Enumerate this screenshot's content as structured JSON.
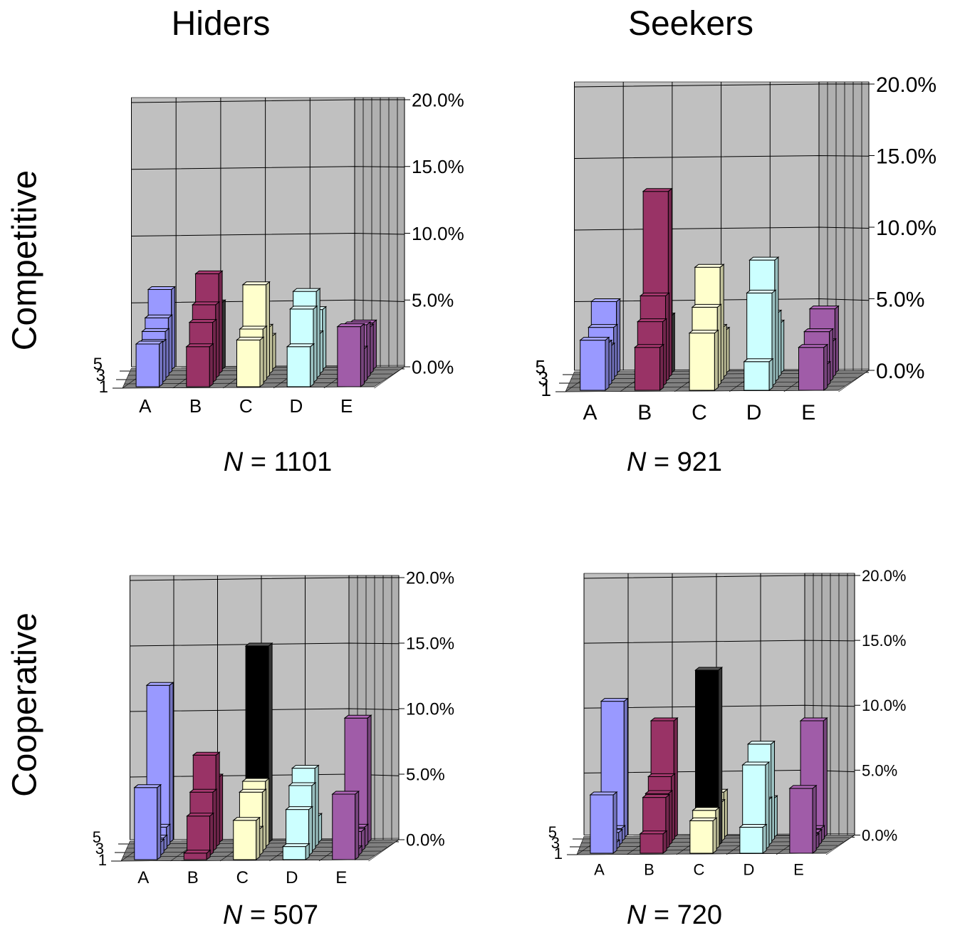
{
  "columns": [
    "Hiders",
    "Seekers"
  ],
  "rows": [
    "Competitive",
    "Cooperative"
  ],
  "n_prefix": "N",
  "colors": {
    "A": "#9999ff",
    "B": "#993366",
    "C": "#ffffcc",
    "D": "#ccffff",
    "E": "#a05ca8",
    "highlight": "#000000",
    "wall": "#c0c0c0",
    "floor": "#808080"
  },
  "chart_data": [
    {
      "type": "bar",
      "subtype": "3d-bar",
      "panel": "Hiders / Competitive",
      "n_label": " = 1101",
      "categories": [
        "A",
        "B",
        "C",
        "D",
        "E"
      ],
      "depth_ticks": [
        "1",
        "3",
        "5"
      ],
      "y_ticks": [
        "0.0%",
        "5.0%",
        "10.0%",
        "15.0%",
        "20.0%"
      ],
      "ylim": [
        0,
        20
      ],
      "highlight": {
        "category": "B",
        "row": 5
      },
      "values": {
        "A": [
          3.2,
          3.0,
          3.5,
          4.2,
          6.0
        ],
        "B": [
          3.0,
          4.5,
          5.5,
          7.5,
          5.0
        ],
        "C": [
          3.5,
          4.0,
          7.0,
          3.5,
          2.5
        ],
        "D": [
          3.0,
          5.5,
          6.5,
          3.0,
          4.5
        ],
        "E": [
          4.5,
          2.5,
          4.0,
          3.5,
          3.5
        ]
      }
    },
    {
      "type": "bar",
      "subtype": "3d-bar",
      "panel": "Seekers / Competitive",
      "n_label": " = 921",
      "categories": [
        "A",
        "B",
        "C",
        "D",
        "E"
      ],
      "depth_ticks": [
        "1",
        "3",
        "5"
      ],
      "y_ticks": [
        "0.0%",
        "5.0%",
        "10.0%",
        "15.0%",
        "20.0%"
      ],
      "ylim": [
        0,
        20
      ],
      "highlight": {
        "category": "B",
        "row": 5
      },
      "values": {
        "A": [
          3.5,
          3.0,
          2.5,
          3.5,
          5.0
        ],
        "B": [
          3.0,
          4.5,
          6.0,
          13.0,
          4.0
        ],
        "C": [
          4.0,
          5.5,
          8.0,
          3.5,
          3.0
        ],
        "D": [
          2.0,
          6.5,
          8.5,
          4.5,
          3.5
        ],
        "E": [
          3.0,
          1.5,
          3.5,
          2.5,
          4.5
        ]
      }
    },
    {
      "type": "bar",
      "subtype": "3d-bar",
      "panel": "Hiders / Cooperative",
      "n_label": " = 507",
      "categories": [
        "A",
        "B",
        "C",
        "D",
        "E"
      ],
      "depth_ticks": [
        "1",
        "3",
        "5"
      ],
      "y_ticks": [
        "0.0%",
        "5.0%",
        "10.0%",
        "15.0%",
        "20.0%"
      ],
      "ylim": [
        0,
        20
      ],
      "highlight": {
        "category": "C",
        "row": 5
      },
      "values": {
        "A": [
          5.5,
          1.0,
          1.0,
          1.5,
          12.0
        ],
        "B": [
          0.5,
          3.0,
          4.5,
          7.0,
          5.0
        ],
        "C": [
          3.0,
          2.0,
          4.5,
          5.0,
          15.0
        ],
        "D": [
          1.0,
          3.5,
          5.0,
          6.0,
          2.0
        ],
        "E": [
          5.0,
          0.5,
          1.5,
          1.5,
          9.5
        ]
      }
    },
    {
      "type": "bar",
      "subtype": "3d-bar",
      "panel": "Seekers / Cooperative",
      "n_label": " = 720",
      "categories": [
        "A",
        "B",
        "C",
        "D",
        "E"
      ],
      "depth_ticks": [
        "1",
        "3",
        "5"
      ],
      "y_ticks": [
        "0.0%",
        "5.0%",
        "10.0%",
        "15.0%",
        "20.0%"
      ],
      "ylim": [
        0,
        20
      ],
      "highlight": {
        "category": "C",
        "row": 3
      },
      "values": {
        "A": [
          4.5,
          0.5,
          1.0,
          1.0,
          10.5
        ],
        "B": [
          1.5,
          4.0,
          4.0,
          5.0,
          9.0
        ],
        "C": [
          2.5,
          3.0,
          13.5,
          3.0,
          3.5
        ],
        "D": [
          2.0,
          6.5,
          3.5,
          7.5,
          3.0
        ],
        "E": [
          5.0,
          1.0,
          1.0,
          1.0,
          9.0
        ]
      }
    }
  ]
}
